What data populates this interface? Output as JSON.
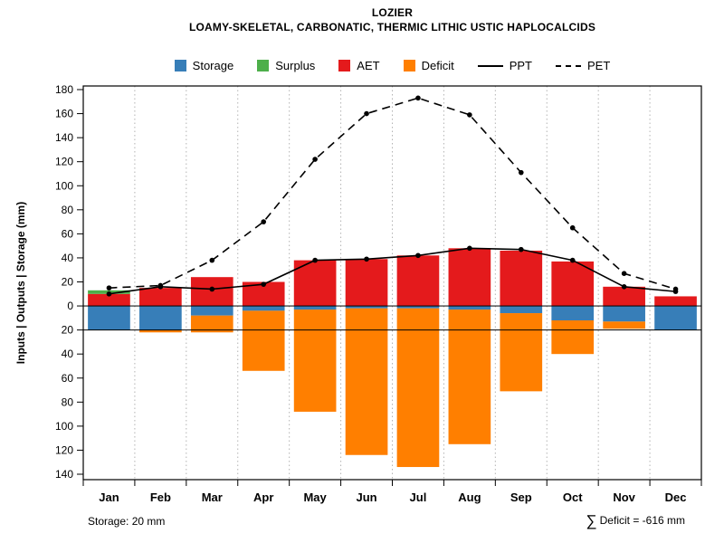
{
  "title": "LOZIER",
  "subtitle": "LOAMY-SKELETAL, CARBONATIC, THERMIC LITHIC USTIC HAPLOCALCIDS",
  "legend": {
    "items": [
      {
        "label": "Storage",
        "color": "#377EB8",
        "type": "box"
      },
      {
        "label": "Surplus",
        "color": "#4DAF4A",
        "type": "box"
      },
      {
        "label": "AET",
        "color": "#E41A1C",
        "type": "box"
      },
      {
        "label": "Deficit",
        "color": "#FF7F00",
        "type": "box"
      },
      {
        "label": "PPT",
        "color": "#000000",
        "type": "line-solid"
      },
      {
        "label": "PET",
        "color": "#000000",
        "type": "line-dashed"
      }
    ]
  },
  "footer": {
    "storage_note": "Storage: 20 mm",
    "deficit_sigma": "∑",
    "deficit_text": "Deficit = -616 mm"
  },
  "chart_data": {
    "type": "bar",
    "title": "LOZIER",
    "subtitle": "LOAMY-SKELETAL, CARBONATIC, THERMIC LITHIC USTIC HAPLOCALCIDS",
    "ylabel": "Inputs | Outputs | Storage  (mm)",
    "categories": [
      "Jan",
      "Feb",
      "Mar",
      "Apr",
      "May",
      "Jun",
      "Jul",
      "Aug",
      "Sep",
      "Oct",
      "Nov",
      "Dec"
    ],
    "ylim": [
      -140,
      180
    ],
    "ytick_step": 20,
    "grid": "vertical-dotted",
    "legend_position": "top",
    "max_storage_mm": 20,
    "deficit_total_mm": -616,
    "series": [
      {
        "name": "AET",
        "color": "#E41A1C",
        "render": "bar-up",
        "values": [
          10,
          15,
          24,
          20,
          38,
          39,
          42,
          48,
          46,
          37,
          16,
          8
        ]
      },
      {
        "name": "Surplus",
        "color": "#4DAF4A",
        "render": "bar-up-stacked",
        "values": [
          3,
          0,
          0,
          0,
          0,
          0,
          0,
          0,
          0,
          0,
          0,
          0
        ]
      },
      {
        "name": "Storage",
        "color": "#377EB8",
        "render": "bar-down",
        "values": [
          20,
          20,
          8,
          4,
          3,
          2,
          2,
          3,
          6,
          12,
          13,
          20
        ]
      },
      {
        "name": "Deficit",
        "color": "#FF7F00",
        "render": "bar-down-stacked",
        "values": [
          0,
          2,
          14,
          50,
          85,
          122,
          132,
          112,
          65,
          28,
          6,
          0
        ]
      },
      {
        "name": "PPT",
        "color": "#000000",
        "render": "line-solid-points",
        "values": [
          10,
          16,
          14,
          18,
          38,
          39,
          42,
          48,
          47,
          38,
          16,
          12
        ]
      },
      {
        "name": "PET",
        "color": "#000000",
        "render": "line-dashed-points",
        "values": [
          15,
          17,
          38,
          70,
          122,
          160,
          173,
          159,
          111,
          65,
          27,
          14
        ]
      }
    ]
  }
}
